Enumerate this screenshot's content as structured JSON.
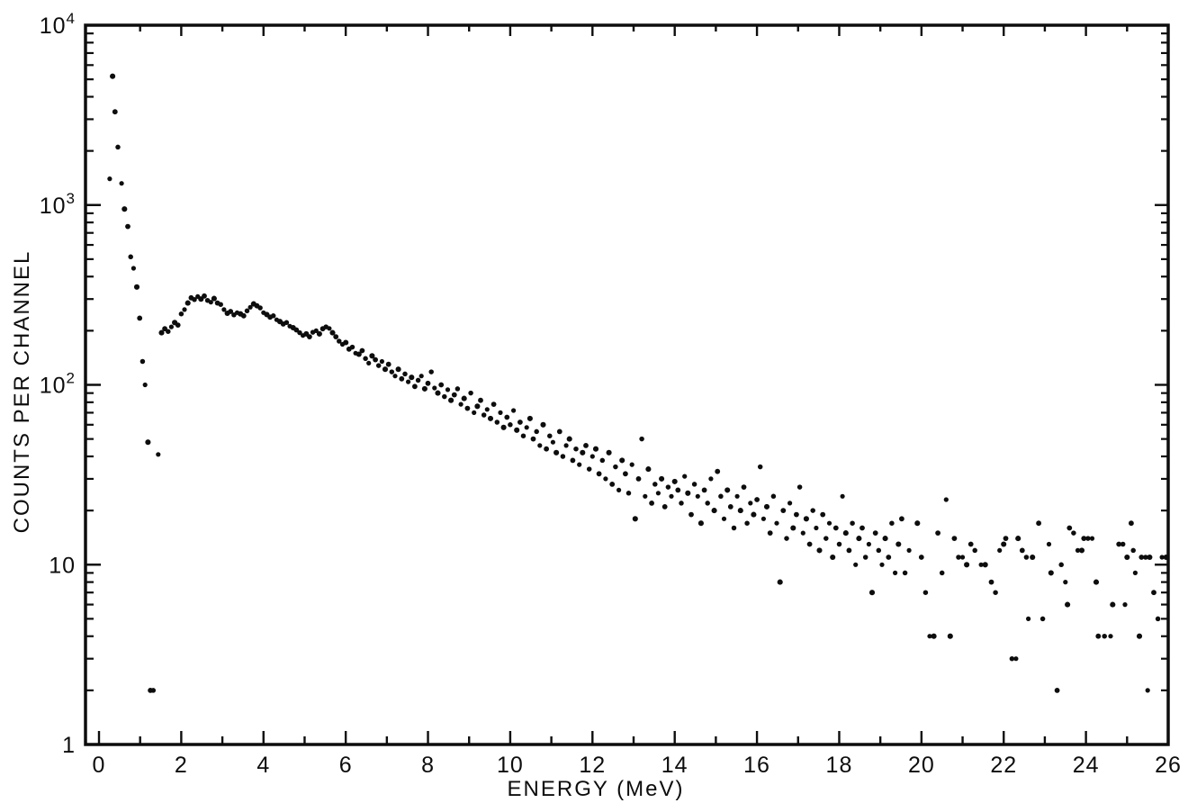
{
  "figure": {
    "background_color": "#ffffff",
    "ink_color": "#0d0d0d"
  },
  "chart_data": {
    "type": "scatter",
    "title": "",
    "xlabel": "ENERGY (MeV)",
    "ylabel": "COUNTS PER CHANNEL",
    "x_range": [
      0,
      26
    ],
    "y_scale": "log",
    "y_range": [
      1,
      10000
    ],
    "grid": false,
    "legend": "none",
    "marker": "filled-dot",
    "x_major_tick_step": 2,
    "x_minor_tick_step": 1,
    "x_tick_labels": [
      "0",
      "2",
      "4",
      "6",
      "8",
      "10",
      "12",
      "14",
      "16",
      "18",
      "20",
      "22",
      "24",
      "26"
    ],
    "y_ticks": [
      {
        "value": 10000,
        "base": "10",
        "exp": "4"
      },
      {
        "value": 1000,
        "base": "10",
        "exp": "3"
      },
      {
        "value": 100,
        "base": "10",
        "exp": "2"
      },
      {
        "value": 10,
        "base": "10",
        "exp": ""
      },
      {
        "value": 1,
        "base": "1",
        "exp": ""
      }
    ],
    "points": [
      [
        0.26,
        1400
      ],
      [
        0.33,
        5200
      ],
      [
        0.39,
        3300
      ],
      [
        0.46,
        2100
      ],
      [
        0.55,
        1320
      ],
      [
        0.62,
        950
      ],
      [
        0.7,
        760
      ],
      [
        0.77,
        515
      ],
      [
        0.84,
        445
      ],
      [
        0.92,
        350
      ],
      [
        0.99,
        235
      ],
      [
        1.06,
        135
      ],
      [
        1.12,
        100
      ],
      [
        1.19,
        48
      ],
      [
        1.25,
        2
      ],
      [
        1.32,
        2
      ],
      [
        1.44,
        41
      ],
      [
        1.52,
        195
      ],
      [
        1.6,
        205
      ],
      [
        1.68,
        198
      ],
      [
        1.76,
        210
      ],
      [
        1.84,
        222
      ],
      [
        1.92,
        215
      ],
      [
        2.0,
        248
      ],
      [
        2.08,
        262
      ],
      [
        2.16,
        285
      ],
      [
        2.24,
        305
      ],
      [
        2.32,
        298
      ],
      [
        2.4,
        310
      ],
      [
        2.48,
        300
      ],
      [
        2.56,
        312
      ],
      [
        2.64,
        295
      ],
      [
        2.72,
        288
      ],
      [
        2.8,
        302
      ],
      [
        2.88,
        285
      ],
      [
        2.96,
        280
      ],
      [
        3.04,
        262
      ],
      [
        3.12,
        250
      ],
      [
        3.2,
        256
      ],
      [
        3.28,
        245
      ],
      [
        3.36,
        252
      ],
      [
        3.44,
        248
      ],
      [
        3.52,
        242
      ],
      [
        3.6,
        258
      ],
      [
        3.68,
        270
      ],
      [
        3.76,
        282
      ],
      [
        3.84,
        275
      ],
      [
        3.92,
        268
      ],
      [
        4.0,
        252
      ],
      [
        4.08,
        246
      ],
      [
        4.16,
        238
      ],
      [
        4.24,
        242
      ],
      [
        4.32,
        230
      ],
      [
        4.4,
        225
      ],
      [
        4.48,
        218
      ],
      [
        4.56,
        222
      ],
      [
        4.64,
        212
      ],
      [
        4.72,
        208
      ],
      [
        4.8,
        202
      ],
      [
        4.88,
        195
      ],
      [
        4.96,
        188
      ],
      [
        5.04,
        192
      ],
      [
        5.12,
        185
      ],
      [
        5.2,
        196
      ],
      [
        5.28,
        200
      ],
      [
        5.36,
        192
      ],
      [
        5.44,
        205
      ],
      [
        5.52,
        210
      ],
      [
        5.6,
        206
      ],
      [
        5.68,
        195
      ],
      [
        5.76,
        185
      ],
      [
        5.84,
        175
      ],
      [
        5.92,
        168
      ],
      [
        6.0,
        172
      ],
      [
        6.08,
        158
      ],
      [
        6.16,
        162
      ],
      [
        6.24,
        150
      ],
      [
        6.32,
        148
      ],
      [
        6.4,
        155
      ],
      [
        6.48,
        140
      ],
      [
        6.56,
        132
      ],
      [
        6.64,
        145
      ],
      [
        6.72,
        138
      ],
      [
        6.8,
        128
      ],
      [
        6.88,
        135
      ],
      [
        6.96,
        122
      ],
      [
        7.04,
        130
      ],
      [
        7.12,
        118
      ],
      [
        7.2,
        112
      ],
      [
        7.28,
        122
      ],
      [
        7.36,
        108
      ],
      [
        7.44,
        115
      ],
      [
        7.52,
        104
      ],
      [
        7.6,
        110
      ],
      [
        7.68,
        98
      ],
      [
        7.76,
        106
      ],
      [
        7.84,
        112
      ],
      [
        7.92,
        95
      ],
      [
        8.0,
        102
      ],
      [
        8.08,
        118
      ],
      [
        8.16,
        96
      ],
      [
        8.24,
        90
      ],
      [
        8.32,
        100
      ],
      [
        8.4,
        86
      ],
      [
        8.48,
        94
      ],
      [
        8.56,
        82
      ],
      [
        8.64,
        88
      ],
      [
        8.72,
        95
      ],
      [
        8.8,
        78
      ],
      [
        8.88,
        84
      ],
      [
        8.96,
        74
      ],
      [
        9.04,
        90
      ],
      [
        9.12,
        70
      ],
      [
        9.2,
        76
      ],
      [
        9.28,
        82
      ],
      [
        9.36,
        68
      ],
      [
        9.44,
        73
      ],
      [
        9.52,
        65
      ],
      [
        9.6,
        78
      ],
      [
        9.68,
        62
      ],
      [
        9.76,
        70
      ],
      [
        9.84,
        58
      ],
      [
        9.92,
        66
      ],
      [
        10.0,
        60
      ],
      [
        10.08,
        72
      ],
      [
        10.16,
        56
      ],
      [
        10.24,
        62
      ],
      [
        10.32,
        52
      ],
      [
        10.4,
        58
      ],
      [
        10.48,
        65
      ],
      [
        10.56,
        50
      ],
      [
        10.64,
        55
      ],
      [
        10.72,
        46
      ],
      [
        10.8,
        60
      ],
      [
        10.88,
        44
      ],
      [
        10.96,
        52
      ],
      [
        11.04,
        48
      ],
      [
        11.12,
        42
      ],
      [
        11.2,
        55
      ],
      [
        11.28,
        40
      ],
      [
        11.36,
        46
      ],
      [
        11.44,
        50
      ],
      [
        11.52,
        38
      ],
      [
        11.6,
        44
      ],
      [
        11.68,
        36
      ],
      [
        11.76,
        42
      ],
      [
        11.84,
        46
      ],
      [
        11.92,
        34
      ],
      [
        12.0,
        40
      ],
      [
        12.08,
        44
      ],
      [
        12.16,
        32
      ],
      [
        12.24,
        38
      ],
      [
        12.32,
        30
      ],
      [
        12.4,
        42
      ],
      [
        12.48,
        28
      ],
      [
        12.56,
        35
      ],
      [
        12.64,
        26
      ],
      [
        12.72,
        38
      ],
      [
        12.8,
        32
      ],
      [
        12.88,
        25
      ],
      [
        12.96,
        36
      ],
      [
        13.04,
        18
      ],
      [
        13.12,
        30
      ],
      [
        13.2,
        50
      ],
      [
        13.28,
        24
      ],
      [
        13.36,
        34
      ],
      [
        13.44,
        22
      ],
      [
        13.52,
        28
      ],
      [
        13.6,
        25
      ],
      [
        13.68,
        30
      ],
      [
        13.76,
        21
      ],
      [
        13.84,
        27
      ],
      [
        13.92,
        24
      ],
      [
        14.0,
        29
      ],
      [
        14.08,
        26
      ],
      [
        14.16,
        22
      ],
      [
        14.24,
        31
      ],
      [
        14.32,
        25
      ],
      [
        14.4,
        19
      ],
      [
        14.48,
        28
      ],
      [
        14.56,
        24
      ],
      [
        14.64,
        17
      ],
      [
        14.72,
        26
      ],
      [
        14.8,
        22
      ],
      [
        14.88,
        30
      ],
      [
        14.96,
        20
      ],
      [
        15.04,
        33
      ],
      [
        15.12,
        24
      ],
      [
        15.2,
        18
      ],
      [
        15.28,
        26
      ],
      [
        15.36,
        21
      ],
      [
        15.44,
        16
      ],
      [
        15.52,
        24
      ],
      [
        15.6,
        20
      ],
      [
        15.68,
        27
      ],
      [
        15.76,
        17
      ],
      [
        15.84,
        22
      ],
      [
        15.92,
        19
      ],
      [
        16.0,
        23
      ],
      [
        16.08,
        35
      ],
      [
        16.16,
        18
      ],
      [
        16.24,
        21
      ],
      [
        16.32,
        15
      ],
      [
        16.4,
        24
      ],
      [
        16.48,
        17
      ],
      [
        16.56,
        8
      ],
      [
        16.64,
        20
      ],
      [
        16.72,
        14
      ],
      [
        16.8,
        22
      ],
      [
        16.88,
        16
      ],
      [
        16.96,
        19
      ],
      [
        17.04,
        27
      ],
      [
        17.12,
        15
      ],
      [
        17.2,
        18
      ],
      [
        17.28,
        13
      ],
      [
        17.36,
        20
      ],
      [
        17.44,
        16
      ],
      [
        17.52,
        12
      ],
      [
        17.6,
        19
      ],
      [
        17.68,
        14
      ],
      [
        17.76,
        17
      ],
      [
        17.84,
        11
      ],
      [
        17.92,
        16
      ],
      [
        18.0,
        13
      ],
      [
        18.08,
        24
      ],
      [
        18.16,
        15
      ],
      [
        18.24,
        12
      ],
      [
        18.32,
        17
      ],
      [
        18.4,
        10
      ],
      [
        18.48,
        14
      ],
      [
        18.56,
        16
      ],
      [
        18.64,
        11
      ],
      [
        18.72,
        13
      ],
      [
        18.8,
        7
      ],
      [
        18.88,
        15
      ],
      [
        18.96,
        12
      ],
      [
        19.04,
        10
      ],
      [
        19.12,
        14
      ],
      [
        19.2,
        11
      ],
      [
        19.28,
        17
      ],
      [
        19.36,
        9
      ],
      [
        19.44,
        13
      ],
      [
        19.52,
        18
      ],
      [
        19.6,
        9
      ],
      [
        19.7,
        12
      ],
      [
        19.9,
        17
      ],
      [
        20.0,
        11
      ],
      [
        20.1,
        7
      ],
      [
        20.2,
        4
      ],
      [
        20.3,
        4
      ],
      [
        20.4,
        15
      ],
      [
        20.5,
        9
      ],
      [
        20.6,
        23
      ],
      [
        20.7,
        4
      ],
      [
        20.8,
        14
      ],
      [
        20.9,
        11
      ],
      [
        21.0,
        11
      ],
      [
        21.1,
        10
      ],
      [
        21.2,
        13
      ],
      [
        21.3,
        12
      ],
      [
        21.45,
        10
      ],
      [
        21.55,
        10
      ],
      [
        21.7,
        8
      ],
      [
        21.8,
        7
      ],
      [
        21.9,
        12
      ],
      [
        22.0,
        13
      ],
      [
        22.05,
        14
      ],
      [
        22.2,
        3
      ],
      [
        22.3,
        3
      ],
      [
        22.35,
        14
      ],
      [
        22.45,
        12
      ],
      [
        22.55,
        11
      ],
      [
        22.6,
        5
      ],
      [
        22.7,
        11
      ],
      [
        22.85,
        17
      ],
      [
        22.95,
        5
      ],
      [
        23.1,
        13
      ],
      [
        23.15,
        9
      ],
      [
        23.3,
        2
      ],
      [
        23.4,
        10
      ],
      [
        23.5,
        8
      ],
      [
        23.55,
        6
      ],
      [
        23.6,
        16
      ],
      [
        23.7,
        15
      ],
      [
        23.8,
        12
      ],
      [
        23.9,
        12
      ],
      [
        23.95,
        14
      ],
      [
        24.05,
        14
      ],
      [
        24.15,
        14
      ],
      [
        24.25,
        8
      ],
      [
        24.3,
        4
      ],
      [
        24.45,
        4
      ],
      [
        24.6,
        4
      ],
      [
        24.65,
        6
      ],
      [
        24.8,
        13
      ],
      [
        24.9,
        13
      ],
      [
        24.95,
        6
      ],
      [
        25.0,
        11
      ],
      [
        25.1,
        17
      ],
      [
        25.15,
        12
      ],
      [
        25.2,
        9
      ],
      [
        25.3,
        4
      ],
      [
        25.35,
        11
      ],
      [
        25.45,
        11
      ],
      [
        25.5,
        2
      ],
      [
        25.55,
        11
      ],
      [
        25.65,
        7
      ],
      [
        25.75,
        5
      ],
      [
        25.85,
        11
      ],
      [
        25.95,
        11
      ]
    ]
  }
}
